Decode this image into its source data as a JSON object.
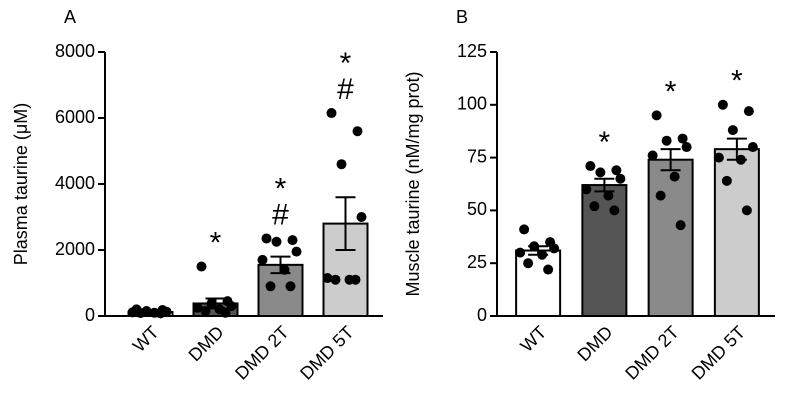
{
  "chart_data": [
    {
      "type": "bar",
      "panel_label": "A",
      "y_label": "Plasma taurine (μM)",
      "categories": [
        "WT",
        "DMD",
        "DMD 2T",
        "DMD 5T"
      ],
      "values": [
        120,
        380,
        1550,
        2800
      ],
      "errors": [
        20,
        150,
        250,
        800
      ],
      "colors": [
        "#ffffff",
        "#555555",
        "#8a8a8a",
        "#cccccc"
      ],
      "points": [
        [
          200,
          180,
          150,
          130,
          110,
          100,
          90,
          80
        ],
        [
          1500,
          450,
          380,
          300,
          250,
          200,
          150,
          100
        ],
        [
          2350,
          2300,
          2250,
          1950,
          1700,
          1400,
          900,
          900
        ],
        [
          6150,
          5600,
          4600,
          3000,
          1150,
          1100,
          1100,
          1100
        ]
      ],
      "annotations": [
        {
          "x": "DMD",
          "text": [
            "*"
          ]
        },
        {
          "x": "DMD 2T",
          "text": [
            "*",
            "#"
          ]
        },
        {
          "x": "DMD 5T",
          "text": [
            "*",
            "#"
          ]
        }
      ],
      "ylim": [
        0,
        8000
      ],
      "yticks": [
        0,
        2000,
        4000,
        6000,
        8000
      ]
    },
    {
      "type": "bar",
      "panel_label": "B",
      "y_label": "Muscle taurine (nM/mg prot)",
      "categories": [
        "WT",
        "DMD",
        "DMD 2T",
        "DMD 5T"
      ],
      "values": [
        31,
        62,
        74,
        79
      ],
      "errors": [
        2,
        3,
        5,
        5
      ],
      "colors": [
        "#ffffff",
        "#555555",
        "#8a8a8a",
        "#cccccc"
      ],
      "points": [
        [
          41,
          35,
          33,
          32,
          30,
          29,
          25,
          22
        ],
        [
          71,
          69,
          68,
          65,
          60,
          57,
          52,
          50
        ],
        [
          95,
          84,
          83,
          80,
          76,
          66,
          57,
          43
        ],
        [
          100,
          97,
          88,
          80,
          75,
          74,
          64,
          50
        ]
      ],
      "annotations": [
        {
          "x": "DMD",
          "text": [
            "*"
          ]
        },
        {
          "x": "DMD 2T",
          "text": [
            "*"
          ]
        },
        {
          "x": "DMD 5T",
          "text": [
            "*"
          ]
        }
      ],
      "ylim": [
        0,
        125
      ],
      "yticks": [
        0,
        25,
        50,
        75,
        100,
        125
      ]
    }
  ]
}
